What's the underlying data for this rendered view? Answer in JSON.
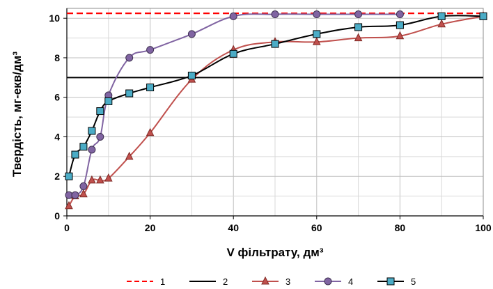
{
  "chart_data": {
    "type": "line",
    "title": "",
    "xlabel": "V фільтрату, дм³",
    "ylabel": "Твердість,  мг-екв/дм³",
    "xlim": [
      0,
      100
    ],
    "ylim": [
      0,
      10.5
    ],
    "x_ticks": [
      0,
      20,
      40,
      60,
      80,
      100
    ],
    "y_ticks": [
      0,
      2,
      4,
      6,
      8,
      10
    ],
    "x_tick_labels": [
      "0",
      "20",
      "40",
      "60",
      "80",
      "100"
    ],
    "y_tick_labels": [
      "0",
      "2",
      "4",
      "6",
      "8",
      "10"
    ],
    "grid": true,
    "legend_position": "bottom",
    "series": [
      {
        "name": "1",
        "style": "dashed",
        "marker": "none",
        "color": "#ff0000",
        "x": [
          0,
          100
        ],
        "y": [
          10.25,
          10.25
        ]
      },
      {
        "name": "2",
        "style": "solid",
        "marker": "none",
        "color": "#000000",
        "x": [
          0,
          100
        ],
        "y": [
          7.0,
          7.0
        ]
      },
      {
        "name": "3",
        "style": "solid",
        "marker": "triangle",
        "color": "#c0504d",
        "fill": "#c0504d",
        "x": [
          0.5,
          2,
          4,
          6,
          8,
          10,
          15,
          20,
          30,
          40,
          50,
          60,
          70,
          80,
          90,
          100
        ],
        "y": [
          0.5,
          1.0,
          1.1,
          1.8,
          1.8,
          1.9,
          3.0,
          4.2,
          6.9,
          8.4,
          8.8,
          8.8,
          9.0,
          9.1,
          9.7,
          10.1
        ]
      },
      {
        "name": "4",
        "style": "solid",
        "marker": "circle",
        "color": "#8064a2",
        "fill": "#8064a2",
        "x": [
          0.5,
          2,
          4,
          6,
          8,
          10,
          15,
          20,
          30,
          40,
          50,
          60,
          70,
          80
        ],
        "y": [
          1.05,
          1.05,
          1.5,
          3.35,
          4.0,
          6.1,
          8.0,
          8.4,
          9.2,
          10.1,
          10.2,
          10.2,
          10.2,
          10.2
        ]
      },
      {
        "name": "5",
        "style": "solid",
        "marker": "square",
        "color": "#000000",
        "fill": "#4bacc6",
        "x": [
          0.5,
          2,
          4,
          6,
          8,
          10,
          15,
          20,
          30,
          40,
          50,
          60,
          70,
          80,
          90,
          100
        ],
        "y": [
          2.0,
          3.1,
          3.5,
          4.3,
          5.3,
          5.8,
          6.2,
          6.5,
          7.1,
          8.2,
          8.7,
          9.2,
          9.55,
          9.65,
          10.1,
          10.1
        ]
      }
    ]
  }
}
